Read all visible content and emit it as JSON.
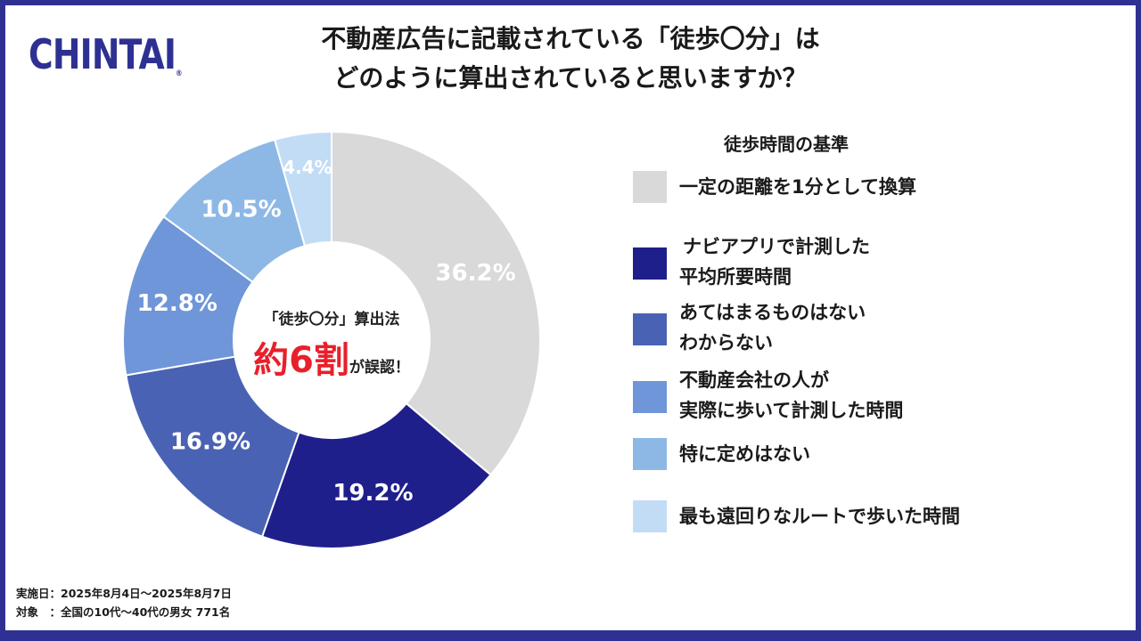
{
  "logo": {
    "text": "CHINTAI",
    "reg": "®"
  },
  "title": {
    "line1": "不動産広告に記載されている「徒歩〇分」は",
    "line2": "どのように算出されていると思いますか？"
  },
  "center": {
    "sub": "「徒歩〇分」算出法",
    "main": "約6割",
    "suffix": "が誤認！"
  },
  "chart_data": {
    "type": "pie",
    "variant": "donut",
    "legend_title": "徒歩時間の基準",
    "categories": [
      "一定の距離を1分として換算",
      "ナビアプリで計測した平均所要時間",
      "あてはまるものはない わからない",
      "不動産会社の人が実際に歩いて計測した時間",
      "特に定めはない",
      "最も遠回りなルートで歩いた時間"
    ],
    "values": [
      36.2,
      19.2,
      16.9,
      12.8,
      10.5,
      4.4
    ],
    "labels": [
      "36.2%",
      "19.2%",
      "16.9%",
      "12.8%",
      "10.5%",
      "4.4%"
    ],
    "colors": [
      "#d9d9d9",
      "#1f1f8c",
      "#4a62b3",
      "#6f96d8",
      "#8db8e6",
      "#c3dcf6"
    ],
    "unit": "%"
  },
  "legend": [
    {
      "lines": [
        "一定の距離を1分として換算"
      ],
      "color": "#d9d9d9"
    },
    {
      "lines": [
        "ナビアプリで計測した",
        "平均所要時間"
      ],
      "color": "#1f1f8c"
    },
    {
      "lines": [
        "あてはまるものはない",
        "わからない"
      ],
      "color": "#4a62b3"
    },
    {
      "lines": [
        "不動産会社の人が",
        "実際に歩いて計測した時間"
      ],
      "color": "#6f96d8"
    },
    {
      "lines": [
        "特に定めはない"
      ],
      "color": "#8db8e6"
    },
    {
      "lines": [
        "最も遠回りなルートで歩いた時間"
      ],
      "color": "#c3dcf6"
    }
  ],
  "footer": {
    "date": "実施日：2025年8月4日〜2025年8月7日",
    "target": "対象　：全国の10代〜40代の男女 771名"
  }
}
